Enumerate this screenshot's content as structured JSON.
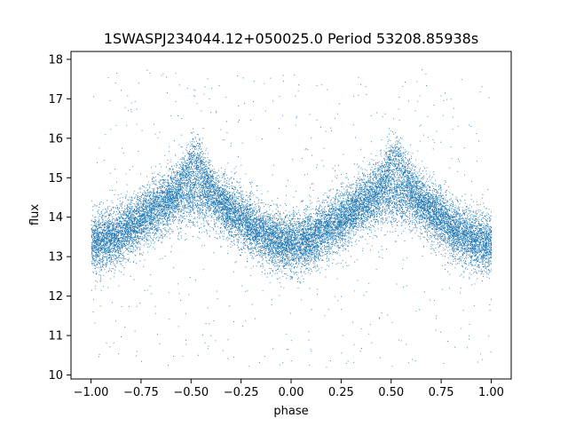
{
  "chart_data": {
    "type": "scatter",
    "title": "1SWASPJ234044.12+050025.0 Period 53208.85938s",
    "xlabel": "phase",
    "ylabel": "flux",
    "xlim": [
      -1.1,
      1.1
    ],
    "ylim": [
      9.9,
      18.2
    ],
    "xticks": [
      -1.0,
      -0.75,
      -0.5,
      -0.25,
      0.0,
      0.25,
      0.5,
      0.75,
      1.0
    ],
    "xtick_labels": [
      "−1.00",
      "−0.75",
      "−0.50",
      "−0.25",
      "0.00",
      "0.25",
      "0.50",
      "0.75",
      "1.00"
    ],
    "yticks": [
      10,
      11,
      12,
      13,
      14,
      15,
      16,
      17,
      18
    ],
    "ytick_labels": [
      "10",
      "11",
      "12",
      "13",
      "14",
      "15",
      "16",
      "17",
      "18"
    ],
    "grid": false,
    "point_color": "#1f77b4",
    "point_count_approx": 20000,
    "series_shape": {
      "description_points": [
        {
          "phase": -1.0,
          "flux_center": 13.5
        },
        {
          "phase": -0.75,
          "flux_center": 14.0
        },
        {
          "phase": -0.6,
          "flux_center": 14.7
        },
        {
          "phase": -0.47,
          "flux_center_upper": 15.6,
          "flux_center_lower": 14.4
        },
        {
          "phase": -0.3,
          "flux_center": 14.3
        },
        {
          "phase": -0.1,
          "flux_center": 13.4
        },
        {
          "phase": 0.0,
          "flux_center": 13.3
        },
        {
          "phase": 0.25,
          "flux_center": 14.0
        },
        {
          "phase": 0.4,
          "flux_center": 14.7
        },
        {
          "phase": 0.53,
          "flux_center_upper": 15.6,
          "flux_center_lower": 14.4
        },
        {
          "phase": 0.7,
          "flux_center": 14.3
        },
        {
          "phase": 0.9,
          "flux_center": 13.4
        },
        {
          "phase": 1.0,
          "flux_center": 13.4
        }
      ],
      "spread": 0.4,
      "outlier_range": [
        10.2,
        17.8
      ]
    }
  }
}
